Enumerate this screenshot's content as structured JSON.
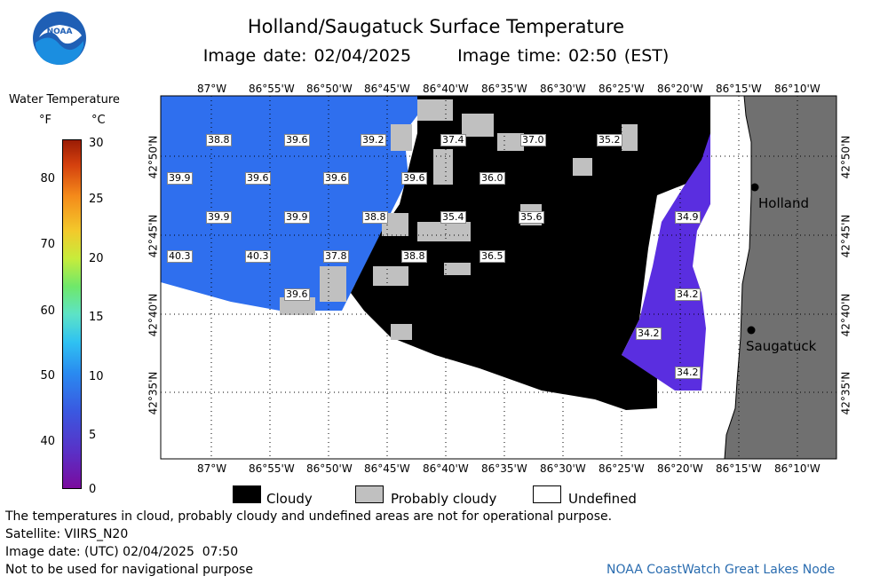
{
  "title": "Holland/Saugatuck Surface Temperature",
  "image_date_label": "Image date: 02/04/2025",
  "image_time_label": "Image time: 02:50 (EST)",
  "logo_text": "NOAA",
  "legend": {
    "title": "Water Temperature",
    "unit_f": "°F",
    "unit_c": "°C",
    "f_ticks": [
      "40",
      "50",
      "60",
      "70",
      "80"
    ],
    "c_ticks": [
      "0",
      "5",
      "10",
      "15",
      "20",
      "25",
      "30"
    ]
  },
  "map": {
    "lon_labels": [
      "87°W",
      "86°55'W",
      "86°50'W",
      "86°45'W",
      "86°40'W",
      "86°35'W",
      "86°30'W",
      "86°25'W",
      "86°20'W",
      "86°15'W",
      "86°10'W"
    ],
    "lat_labels": [
      "42°50'N",
      "42°45'N",
      "42°40'N",
      "42°35'N"
    ],
    "cities": [
      "Holland",
      "Saugatuck"
    ],
    "temperatures": [
      "38.8",
      "39.6",
      "39.2",
      "37.4",
      "37.0",
      "35.2",
      "39.9",
      "39.6",
      "39.6",
      "39.6",
      "36.0",
      "39.9",
      "39.9",
      "38.8",
      "35.4",
      "35.6",
      "34.9",
      "40.3",
      "40.3",
      "37.8",
      "38.8",
      "36.5",
      "39.6",
      "34.2",
      "34.2",
      "34.2"
    ]
  },
  "key": {
    "cloudy": "Cloudy",
    "probably_cloudy": "Probably cloudy",
    "undefined": "Undefined"
  },
  "footer": {
    "line1": "The temperatures in cloud, probably cloudy and undefined areas are not for operational purpose.",
    "line2": "Satellite: VIIRS_N20",
    "line3": "Image date: (UTC) 02/04/2025  07:50",
    "line4": "Not to be used for navigational purpose",
    "credit": "NOAA CoastWatch Great Lakes Node"
  },
  "colors": {
    "water_warm": "#2f6fee",
    "water_cold": "#5a2ee0",
    "water_coldest": "#6a22c8",
    "cloud": "#000000",
    "probably_cloud": "#c0c0c0",
    "land": "#707070",
    "credit": "#2b6db0"
  }
}
